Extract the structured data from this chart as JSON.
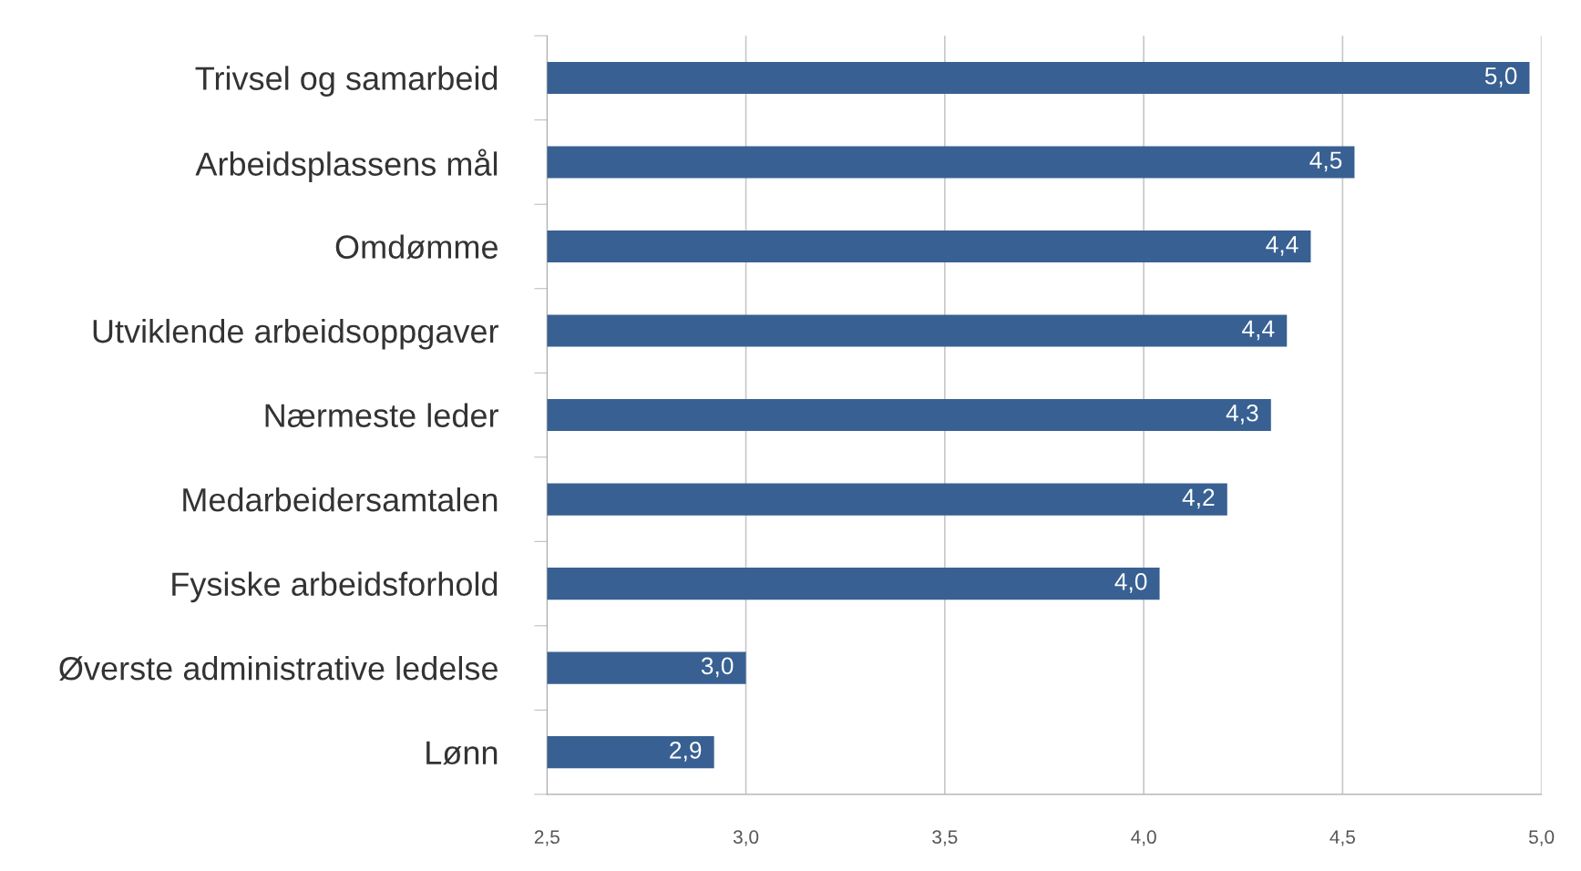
{
  "chart_data": {
    "type": "bar",
    "orientation": "horizontal",
    "categories": [
      "Trivsel og samarbeid",
      "Arbeidsplassens mål",
      "Omdømme",
      "Utviklende arbeidsoppgaver",
      "Nærmeste leder",
      "Medarbeidersamtalen",
      "Fysiske arbeidsforhold",
      "Øverste administrative ledelse",
      "Lønn"
    ],
    "values": [
      4.97,
      4.53,
      4.42,
      4.36,
      4.32,
      4.21,
      4.04,
      3.0,
      2.92
    ],
    "value_labels": [
      "5,0",
      "4,5",
      "4,4",
      "4,4",
      "4,3",
      "4,2",
      "4,0",
      "3,0",
      "2,9"
    ],
    "color": "#386092",
    "xlim": [
      2.5,
      5.0
    ],
    "xticks": [
      {
        "value": 2.5,
        "label": "2,5"
      },
      {
        "value": 3.0,
        "label": "3,0"
      },
      {
        "value": 3.5,
        "label": "3,5"
      },
      {
        "value": 4.0,
        "label": "4,0"
      },
      {
        "value": 4.5,
        "label": "4,5"
      },
      {
        "value": 5.0,
        "label": "5,0"
      }
    ],
    "grid": "x",
    "legend": false
  }
}
